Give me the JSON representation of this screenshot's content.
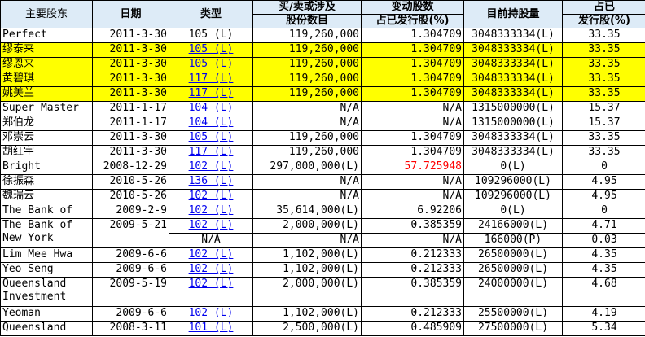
{
  "headers": {
    "holder": "主要股东",
    "date": "日期",
    "type": "类型",
    "shares_top": "买/卖或涉及",
    "shares_bottom": "股份数目",
    "change_top": "变动股数",
    "change_bottom": "占已发行股(%)",
    "holding": "目前持股量",
    "pct_top": "占已",
    "pct_bottom": "发行股(%)"
  },
  "colors": {
    "highlight": "#ffff00",
    "header_bg": "#ddebf7",
    "link": "#0000ee",
    "alert": "#ff0000"
  },
  "rows": [
    {
      "name": "Perfect",
      "date": "2011-3-30",
      "type": "105 (L)",
      "type_link": false,
      "shares": "119,260,000",
      "change": "1.304709",
      "holding": "3048333334(L)",
      "pct": "33.35"
    },
    {
      "name": "缪泰来",
      "date": "2011-3-30",
      "type": "105 (L)",
      "type_link": true,
      "shares": "119,260,000",
      "change": "1.304709",
      "holding": "3048333334(L)",
      "pct": "33.35",
      "highlight": true
    },
    {
      "name": "缪恩来",
      "date": "2011-3-30",
      "type": "105 (L)",
      "type_link": true,
      "shares": "119,260,000",
      "change": "1.304709",
      "holding": "3048333334(L)",
      "pct": "33.35",
      "highlight": true
    },
    {
      "name": "黄碧琪",
      "date": "2011-3-30",
      "type": "117 (L)",
      "type_link": true,
      "shares": "119,260,000",
      "change": "1.304709",
      "holding": "3048333334(L)",
      "pct": "33.35",
      "highlight": true
    },
    {
      "name": "姚美兰",
      "date": "2011-3-30",
      "type": "117 (L)",
      "type_link": true,
      "shares": "119,260,000",
      "change": "1.304709",
      "holding": "3048333334(L)",
      "pct": "33.35",
      "highlight": true
    },
    {
      "name": "Super Master",
      "date": "2011-1-17",
      "type": "104 (L)",
      "type_link": true,
      "shares": "N/A",
      "change": "N/A",
      "holding": "1315000000(L)",
      "pct": "15.37"
    },
    {
      "name": "郑伯龙",
      "date": "2011-1-17",
      "type": "104 (L)",
      "type_link": true,
      "shares": "N/A",
      "change": "N/A",
      "holding": "1315000000(L)",
      "pct": "15.37"
    },
    {
      "name": "邓崇云",
      "date": "2011-3-30",
      "type": "105 (L)",
      "type_link": true,
      "shares": "119,260,000",
      "change": "1.304709",
      "holding": "3048333334(L)",
      "pct": "33.35"
    },
    {
      "name": "胡红宇",
      "date": "2011-3-30",
      "type": "117 (L)",
      "type_link": true,
      "shares": "119,260,000",
      "change": "1.304709",
      "holding": "3048333334(L)",
      "pct": "33.35"
    },
    {
      "name": "Bright",
      "date": "2008-12-29",
      "type": "102 (L)",
      "type_link": true,
      "shares": "297,000,000(L)",
      "change": "57.725948",
      "change_alert": true,
      "holding": "0(L)",
      "pct": "0"
    },
    {
      "name": "徐振森",
      "date": "2010-5-26",
      "type": "136 (L)",
      "type_link": true,
      "shares": "N/A",
      "change": "N/A",
      "holding": "109296000(L)",
      "pct": "4.95"
    },
    {
      "name": "魏瑞云",
      "date": "2010-5-26",
      "type": "102 (L)",
      "type_link": true,
      "shares": "N/A",
      "change": "N/A",
      "holding": "109296000(L)",
      "pct": "4.95"
    },
    {
      "name": "The Bank of",
      "date": "2009-2-9",
      "type": "102 (L)",
      "type_link": true,
      "shares": "35,614,000(L)",
      "change": "6.92206",
      "holding": "0(L)",
      "pct": "0"
    },
    {
      "name": "The Bank of New York",
      "date": "2009-5-21",
      "type": "102 (L)",
      "type_link": true,
      "shares": "2,000,000(L)",
      "change": "0.385359",
      "holding": "24166000(L)",
      "pct": "4.71",
      "sub": {
        "type": "N/A",
        "shares": "N/A",
        "change": "N/A",
        "holding": "166000(P)",
        "pct": "0.03"
      }
    },
    {
      "name": "Lim Mee Hwa",
      "date": "2009-6-6",
      "type": "102 (L)",
      "type_link": true,
      "shares": "1,102,000(L)",
      "change": "0.212333",
      "holding": "26500000(L)",
      "pct": "4.35"
    },
    {
      "name": "Yeo Seng",
      "date": "2009-6-6",
      "type": "102 (L)",
      "type_link": true,
      "shares": "1,102,000(L)",
      "change": "0.212333",
      "holding": "26500000(L)",
      "pct": "4.35"
    },
    {
      "name": "Queensland Investment",
      "date": "2009-5-19",
      "type": "102 (L)",
      "type_link": true,
      "shares": "2,000,000(L)",
      "change": "0.385359",
      "holding": "24000000(L)",
      "pct": "4.68",
      "tall": true
    },
    {
      "name": "Yeoman",
      "date": "2009-6-6",
      "type": "102 (L)",
      "type_link": true,
      "shares": "1,102,000(L)",
      "change": "0.212333",
      "holding": "25500000(L)",
      "pct": "4.19"
    },
    {
      "name": "Queensland",
      "date": "2008-3-11",
      "type": "101 (L)",
      "type_link": true,
      "shares": "2,500,000(L)",
      "change": "0.485909",
      "holding": "27500000(L)",
      "pct": "5.34"
    }
  ]
}
